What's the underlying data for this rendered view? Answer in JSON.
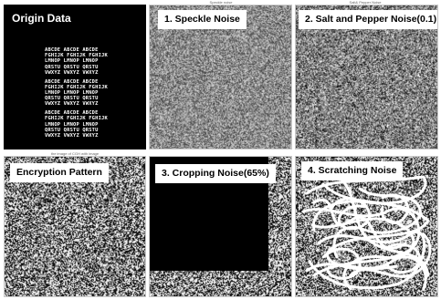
{
  "panels": {
    "origin": {
      "label": "Origin Data",
      "letter_rows": [
        "ABCDE ABCDE ABCDE",
        "FGHIJK FGHIJK FGHIJK",
        "LMNOP LMNOP LMNOP",
        "QRSTU QRSTU QRSTU",
        "VWXYZ VWXYZ VWXYZ"
      ]
    },
    "speckle": {
      "label": "1. Speckle Noise",
      "caption": "Speckle noise"
    },
    "saltpepper": {
      "label": "2. Salt and Pepper Noise(0.1)",
      "caption": "Salt& Pepper Noise"
    },
    "encryption": {
      "label": "Encryption Pattern",
      "caption": "the image of CGH with image"
    },
    "cropping": {
      "label": "3. Cropping Noise(65%)"
    },
    "scratching": {
      "label": "4. Scratching Noise"
    }
  },
  "colors": {
    "background": "#ffffff",
    "origin_background": "#000000",
    "noise_dark": "#000000",
    "noise_light": "#ffffff",
    "label_box": "#ffffff"
  }
}
